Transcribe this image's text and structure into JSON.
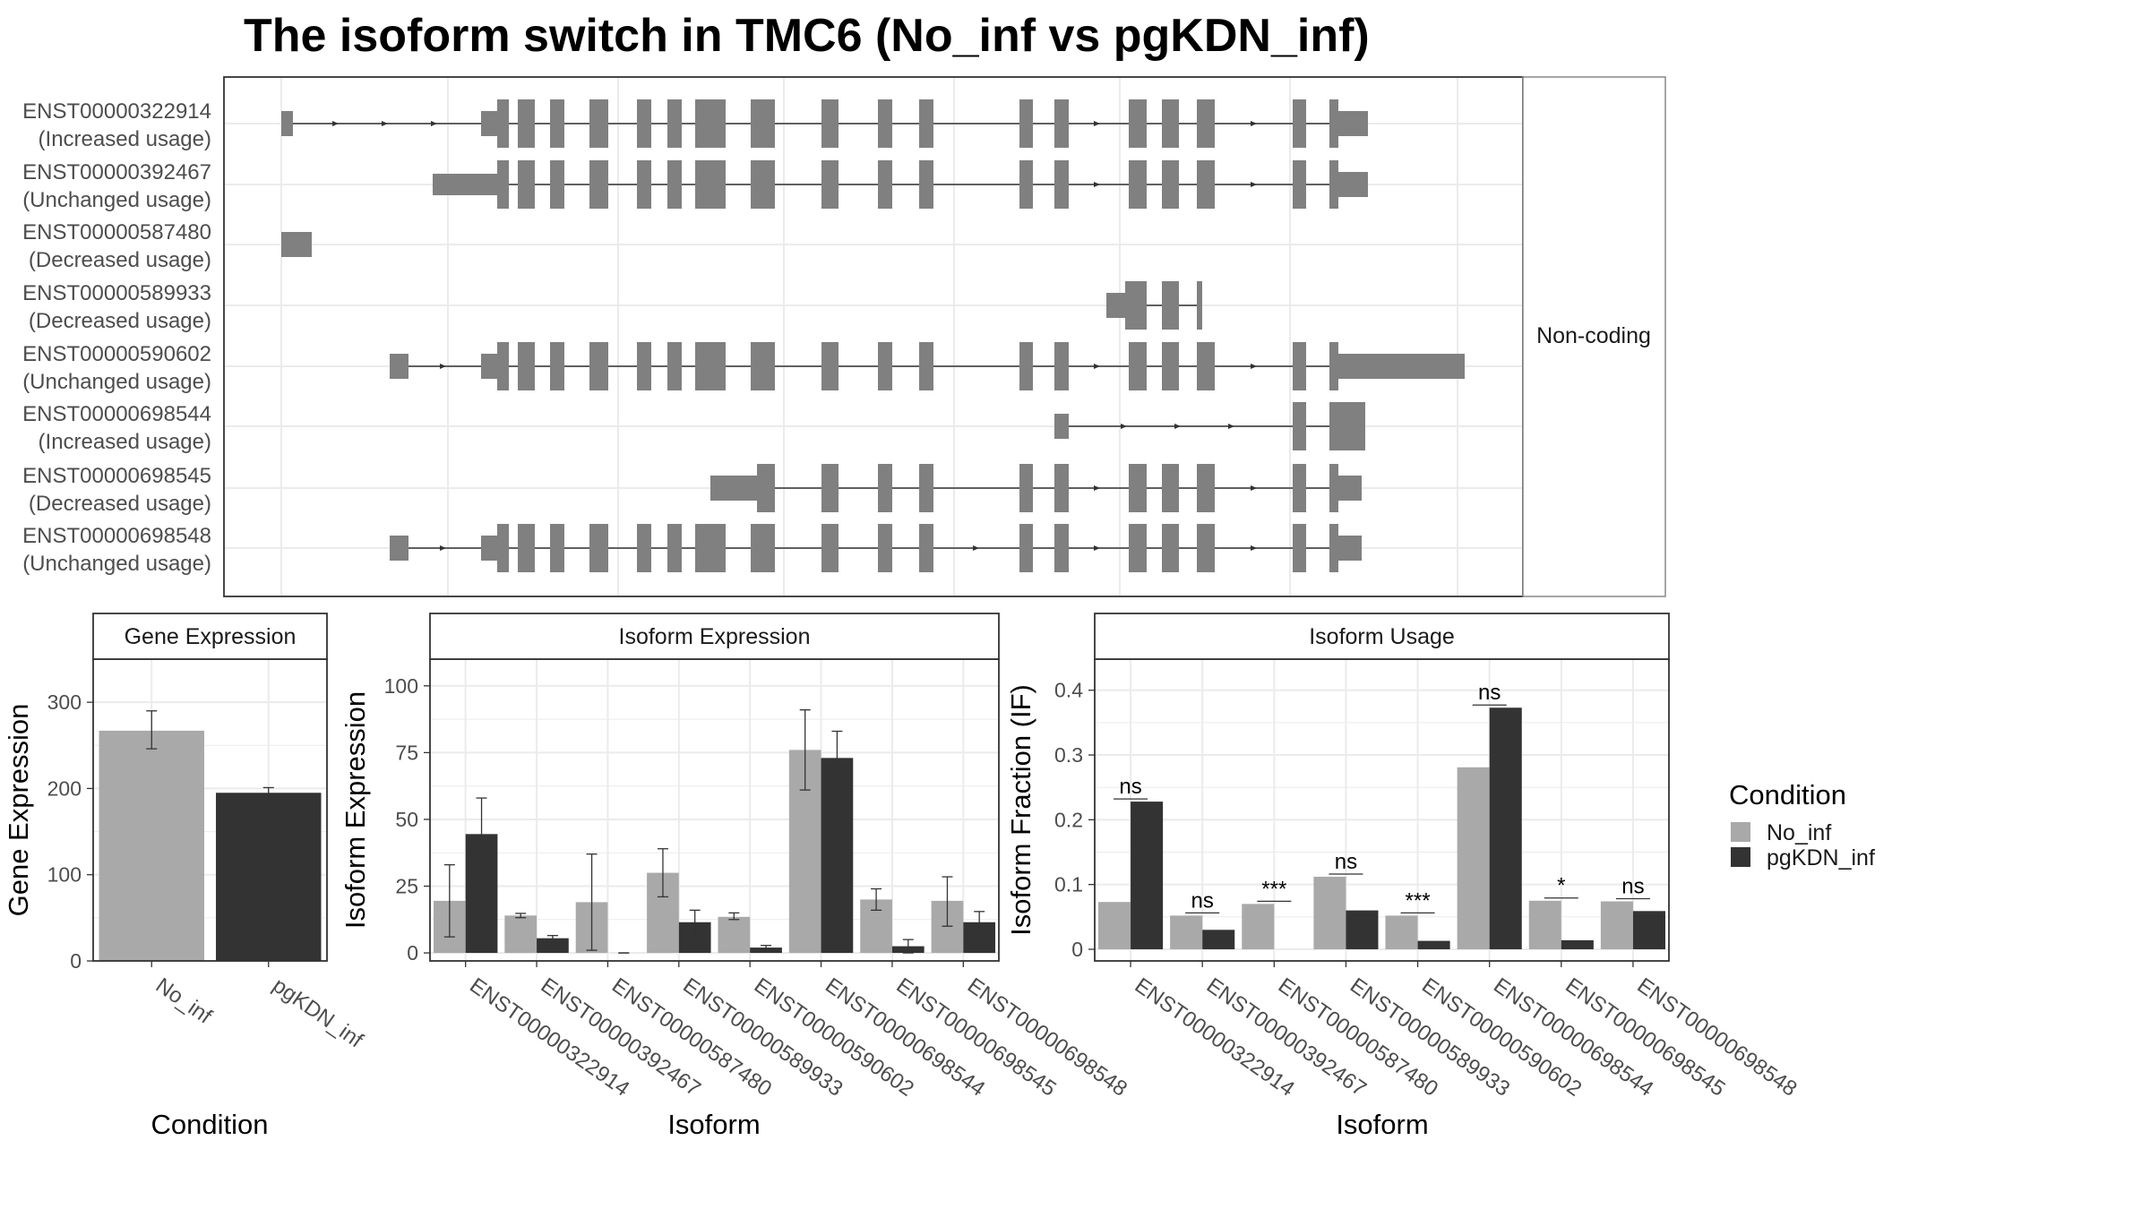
{
  "title": "The isoform switch in TMC6 (No_inf vs pgKDN_inf)",
  "colors": {
    "no_inf": "#a9a9a9",
    "pgkdn_inf": "#333333",
    "exon": "#808080",
    "intron": "#333333",
    "grid": "#ebebeb",
    "panel_border": "#333333",
    "strip_border": "#888888"
  },
  "chart_data": [
    {
      "type": "gene_structure",
      "strip_label": "Non-coding",
      "transcripts": [
        {
          "id": "ENST00000322914",
          "usage": "(Increased usage)"
        },
        {
          "id": "ENST00000392467",
          "usage": "(Unchanged usage)"
        },
        {
          "id": "ENST00000587480",
          "usage": "(Decreased usage)"
        },
        {
          "id": "ENST00000589933",
          "usage": "(Decreased usage)"
        },
        {
          "id": "ENST00000590602",
          "usage": "(Unchanged usage)"
        },
        {
          "id": "ENST00000698544",
          "usage": "(Increased usage)"
        },
        {
          "id": "ENST00000698545",
          "usage": "(Decreased usage)"
        },
        {
          "id": "ENST00000698548",
          "usage": "(Unchanged usage)"
        }
      ]
    },
    {
      "type": "bar",
      "title": "Gene Expression",
      "xlabel": "Condition",
      "ylabel": "Gene Expression",
      "categories": [
        "No_inf",
        "pgKDN_inf"
      ],
      "values": [
        267,
        195
      ],
      "errors": [
        [
          246,
          290
        ],
        [
          190,
          201
        ]
      ],
      "yticks": [
        0,
        100,
        200,
        300
      ],
      "ylim": [
        0,
        350
      ]
    },
    {
      "type": "bar",
      "title": "Isoform Expression",
      "xlabel": "Isoform",
      "ylabel": "Isoform Expression",
      "categories": [
        "ENST00000322914",
        "ENST00000392467",
        "ENST00000587480",
        "ENST00000589933",
        "ENST00000590602",
        "ENST00000698544",
        "ENST00000698545",
        "ENST00000698548"
      ],
      "series": [
        {
          "name": "No_inf",
          "values": [
            19.5,
            14,
            19,
            30,
            13.5,
            76,
            20,
            19.5
          ],
          "errors": [
            [
              6,
              33
            ],
            [
              13.2,
              14.8
            ],
            [
              1,
              37
            ],
            [
              21,
              39
            ],
            [
              12.5,
              15
            ],
            [
              61,
              91
            ],
            [
              16,
              24
            ],
            [
              10,
              28.5
            ]
          ]
        },
        {
          "name": "pgKDN_inf",
          "values": [
            44.5,
            5.5,
            0,
            11.5,
            2,
            73,
            2.5,
            11.5
          ],
          "errors": [
            [
              31,
              58
            ],
            [
              5,
              6.5
            ],
            [
              0,
              0
            ],
            [
              7,
              16
            ],
            [
              1.3,
              2.8
            ],
            [
              63,
              83
            ],
            [
              0,
              5
            ],
            [
              7.5,
              15.5
            ]
          ]
        }
      ],
      "yticks": [
        0,
        25,
        50,
        75,
        100
      ],
      "ylim": [
        -3,
        110
      ]
    },
    {
      "type": "bar",
      "title": "Isoform Usage",
      "xlabel": "Isoform",
      "ylabel": "Isoform Fraction (IF)",
      "categories": [
        "ENST00000322914",
        "ENST00000392467",
        "ENST00000587480",
        "ENST00000589933",
        "ENST00000590602",
        "ENST00000698544",
        "ENST00000698545",
        "ENST00000698548"
      ],
      "series": [
        {
          "name": "No_inf",
          "values": [
            0.073,
            0.052,
            0.07,
            0.112,
            0.052,
            0.281,
            0.075,
            0.074
          ]
        },
        {
          "name": "pgKDN_inf",
          "values": [
            0.228,
            0.03,
            0,
            0.06,
            0.013,
            0.373,
            0.014,
            0.059
          ]
        }
      ],
      "significance": [
        "ns",
        "ns",
        "***",
        "ns",
        "***",
        "ns",
        "*",
        "ns"
      ],
      "yticks": [
        0.0,
        0.1,
        0.2,
        0.3,
        0.4
      ],
      "ylim": [
        -0.018,
        0.448
      ]
    }
  ],
  "legend": {
    "title": "Condition",
    "items": [
      "No_inf",
      "pgKDN_inf"
    ]
  }
}
